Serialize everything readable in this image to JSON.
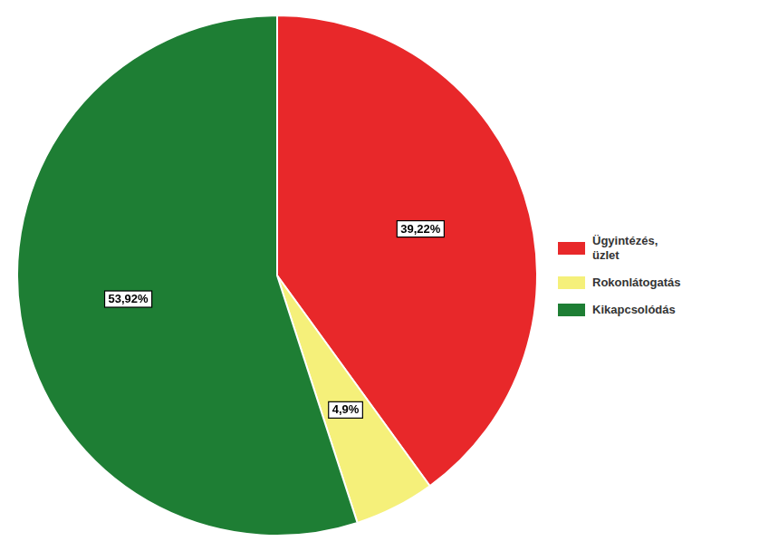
{
  "chart_data": {
    "type": "pie",
    "categories": [
      "Ügyintézés,\nüzlet",
      "Rokonlátogatás",
      "Kikapcsolódás"
    ],
    "values": [
      39.22,
      4.9,
      53.92
    ],
    "value_labels": [
      "39,22%",
      "4,9%",
      "53,92%"
    ],
    "colors": [
      "#e8282a",
      "#f5f07a",
      "#1e7e34"
    ],
    "data_labels": true,
    "legend": "right"
  }
}
